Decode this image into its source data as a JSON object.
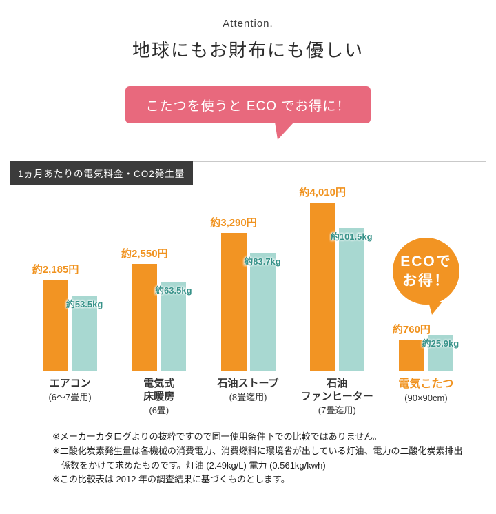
{
  "header": {
    "attention": "Attention.",
    "title": "地球にもお財布にも優しい"
  },
  "bubble": {
    "text": "こたつを使うと ECO でお得に！",
    "color": "#e8697d"
  },
  "panel": {
    "chip": "1ヵ月あたりの電気料金・CO2発生量"
  },
  "eco_badge": {
    "line1": "ECOで",
    "line2": "お得！",
    "color": "#f29423"
  },
  "chart_data": {
    "type": "bar",
    "title": "1ヵ月あたりの電気料金・CO2発生量",
    "categories": [
      "エアコン(6〜7畳用)",
      "電気式床暖房(6畳)",
      "石油ストーブ(8畳迄用)",
      "石油ファンヒーター(7畳迄用)",
      "電気こたつ(90×90cm)"
    ],
    "category_display": [
      {
        "lines": [
          "エアコン"
        ],
        "sub": "(6〜7畳用)",
        "highlight": false
      },
      {
        "lines": [
          "電気式",
          "床暖房"
        ],
        "sub": "(6畳)",
        "highlight": false
      },
      {
        "lines": [
          "石油ストーブ"
        ],
        "sub": "(8畳迄用)",
        "highlight": false
      },
      {
        "lines": [
          "石油",
          "ファンヒーター"
        ],
        "sub": "(7畳迄用)",
        "highlight": false
      },
      {
        "lines": [
          "電気こたつ"
        ],
        "sub": "(90×90cm)",
        "highlight": true
      }
    ],
    "series": [
      {
        "name": "電気料金(円/月)",
        "color": "#f29423",
        "values": [
          2185,
          2550,
          3290,
          4010,
          760
        ],
        "labels": [
          "約2,185円",
          "約2,550円",
          "約3,290円",
          "約4,010円",
          "約760円"
        ],
        "axis_max": 4010
      },
      {
        "name": "CO2発生量(kg/月)",
        "color": "#a8d8d1",
        "values": [
          53.5,
          63.5,
          83.7,
          101.5,
          25.9
        ],
        "labels": [
          "約53.5kg",
          "約63.5kg",
          "約83.7kg",
          "約101.5kg",
          "約25.9kg"
        ],
        "axis_max": 101.5
      }
    ],
    "legend": "none",
    "grid": false
  },
  "footnotes": [
    "※メーカーカタログよりの抜粋ですので同一使用条件下での比較ではありません。",
    "※二酸化炭素発生量は各機械の消費電力、消費燃料に環境省が出している灯油、電力の二酸化炭素排出係数をかけて求めたものです。灯油 (2.49kg/L) 電力 (0.561kg/kwh)",
    "※この比較表は 2012 年の調査結果に基づくものとします。"
  ]
}
